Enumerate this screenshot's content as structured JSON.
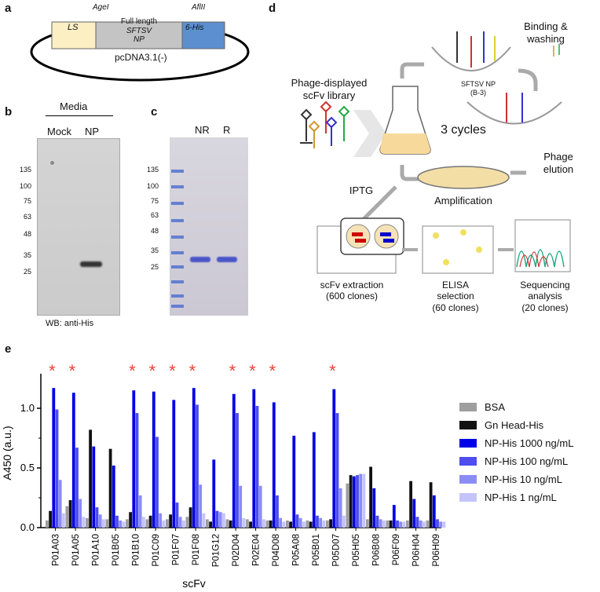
{
  "panels": {
    "a": {
      "label": "a",
      "box_ls": "LS",
      "box_np_line1": "Full length",
      "box_np_line2a": "SFTSV",
      "box_np_line2b": "NP",
      "box_his": "6-His",
      "site_left": "AgeI",
      "site_right": "AflII",
      "vector": "pcDNA3.1(-)",
      "colors": {
        "ls": "#fdefc4",
        "np": "#c4c4c4",
        "his": "#5b8fcf"
      }
    },
    "b": {
      "label": "b",
      "header": "Media",
      "lanes": [
        "Mock",
        "NP"
      ],
      "ladder": [
        "135",
        "100",
        "75",
        "63",
        "48",
        "35",
        "25"
      ],
      "footer": "WB: anti-His"
    },
    "c": {
      "label": "c",
      "lanes": [
        "NR",
        "R"
      ],
      "ladder": [
        "135",
        "100",
        "75",
        "63",
        "48",
        "35",
        "25"
      ]
    },
    "d": {
      "label": "d",
      "library_line1": "Phage-displayed",
      "library_line2": "scFv library",
      "binding_line1": "Binding &",
      "binding_line2": "washing",
      "target_line1": "SFTSV NP",
      "target_line2": "(B-3)",
      "cycles": "3 cycles",
      "elution_line1": "Phage",
      "elution_line2": "elution",
      "amplification": "Amplification",
      "iptg": "IPTG",
      "step1_line1": "scFv extraction",
      "step1_line2": "(600 clones)",
      "step2_line1": "ELISA",
      "step2_line2": "selection",
      "step2_line3": "(60 clones)",
      "step3_line1": "Sequencing",
      "step3_line2": "analysis",
      "step3_line3": "(20 clones)"
    },
    "e": {
      "label": "e",
      "significance_marker": "*",
      "significance_color": "#e8433a"
    }
  },
  "chart_data": {
    "type": "bar",
    "ylabel": "A450 (a.u.)",
    "xlabel": "scFv",
    "ylim": [
      0,
      1.25
    ],
    "yticks": [
      "0.0",
      "0.5",
      "1.0"
    ],
    "categories": [
      "P01A03",
      "P01A05",
      "P01A10",
      "P01B05",
      "P01B10",
      "P01C09",
      "P01F07",
      "P01F08",
      "P01G12",
      "P02D04",
      "P02E04",
      "P04D08",
      "P05A08",
      "P05B01",
      "P05D07",
      "P05H05",
      "P06B08",
      "P06F09",
      "P06H04",
      "P06H09"
    ],
    "significant": [
      "P01A03",
      "P01A05",
      "P01B10",
      "P01C09",
      "P01F07",
      "P01F08",
      "P02D04",
      "P02E04",
      "P04D08",
      "P05D07"
    ],
    "series": [
      {
        "name": "BSA",
        "color": "#9e9e9e",
        "values": [
          0.06,
          0.18,
          0.08,
          0.07,
          0.07,
          0.07,
          0.07,
          0.09,
          0.07,
          0.07,
          0.07,
          0.06,
          0.06,
          0.06,
          0.06,
          0.37,
          0.07,
          0.06,
          0.06,
          0.06
        ]
      },
      {
        "name": "Gn Head-His",
        "color": "#111111",
        "values": [
          0.14,
          0.23,
          0.82,
          0.66,
          0.13,
          0.1,
          0.11,
          0.17,
          0.05,
          0.06,
          0.05,
          0.06,
          0.05,
          0.05,
          0.07,
          0.44,
          0.51,
          0.06,
          0.39,
          0.38
        ]
      },
      {
        "name": "NP-His 1000 ng/mL",
        "color": "#0000e6",
        "values": [
          1.17,
          1.13,
          0.68,
          0.52,
          1.15,
          1.14,
          1.07,
          1.17,
          0.57,
          1.12,
          1.16,
          1.05,
          0.77,
          0.8,
          1.16,
          0.43,
          0.33,
          0.19,
          0.24,
          0.27
        ]
      },
      {
        "name": "NP-His 100 ng/mL",
        "color": "#4d4df0",
        "values": [
          0.99,
          0.67,
          0.17,
          0.1,
          0.96,
          0.76,
          0.21,
          1.03,
          0.14,
          0.96,
          1.02,
          0.27,
          0.11,
          0.1,
          0.96,
          0.44,
          0.1,
          0.06,
          0.09,
          0.07
        ]
      },
      {
        "name": "NP-His 10 ng/mL",
        "color": "#8c8cf5",
        "values": [
          0.4,
          0.24,
          0.11,
          0.06,
          0.27,
          0.12,
          0.09,
          0.36,
          0.13,
          0.35,
          0.35,
          0.08,
          0.08,
          0.08,
          0.33,
          0.45,
          0.07,
          0.05,
          0.06,
          0.05
        ]
      },
      {
        "name": "NP-His 1 ng/mL",
        "color": "#c4c4fa",
        "values": [
          0.12,
          0.09,
          0.07,
          0.05,
          0.09,
          0.06,
          0.06,
          0.12,
          0.12,
          0.08,
          0.07,
          0.05,
          0.05,
          0.06,
          0.1,
          0.45,
          0.06,
          0.05,
          0.05,
          0.05
        ]
      }
    ],
    "legend": "right"
  }
}
